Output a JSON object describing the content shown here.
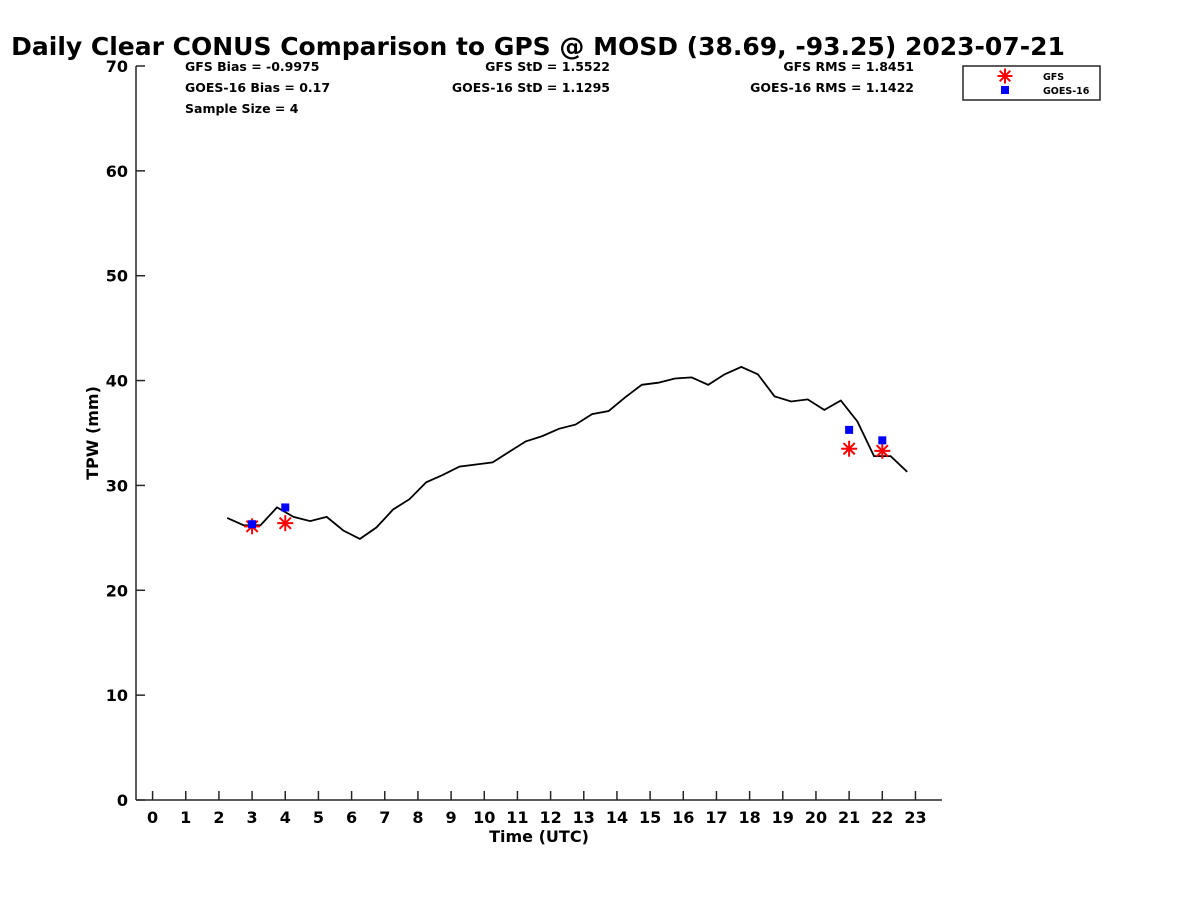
{
  "chart_data": {
    "type": "line",
    "title": "Daily Clear CONUS Comparison to GPS @ MOSD (38.69, -93.25) 2023-07-21",
    "xlabel": "Time (UTC)",
    "ylabel": "TPW (mm)",
    "xlim": [
      -0.5,
      23.8
    ],
    "ylim": [
      0,
      70
    ],
    "x_ticks": [
      "0",
      "1",
      "2",
      "3",
      "4",
      "5",
      "6",
      "7",
      "8",
      "9",
      "10",
      "11",
      "12",
      "13",
      "14",
      "15",
      "16",
      "17",
      "18",
      "19",
      "20",
      "21",
      "22",
      "23"
    ],
    "y_ticks": [
      "0",
      "10",
      "20",
      "30",
      "40",
      "50",
      "60",
      "70"
    ],
    "grid": false,
    "legend_position": "top-right",
    "stats": {
      "gfs_bias": "GFS Bias = -0.9975",
      "goes_bias": "GOES-16 Bias = 0.17",
      "sample_size": "Sample Size = 4",
      "gfs_std": "GFS StD = 1.5522",
      "goes_std": "GOES-16 StD = 1.1295",
      "gfs_rms": "GFS RMS = 1.8451",
      "goes_rms": "GOES-16 RMS = 1.1422"
    },
    "series": [
      {
        "color": "#000000",
        "marker": "line",
        "x": [
          2.25,
          2.75,
          3.25,
          3.75,
          4.25,
          4.75,
          5.25,
          5.75,
          6.25,
          6.75,
          7.25,
          7.75,
          8.25,
          8.75,
          9.25,
          9.75,
          10.25,
          10.75,
          11.25,
          11.75,
          12.25,
          12.75,
          13.25,
          13.75,
          14.25,
          14.75,
          15.25,
          15.75,
          16.25,
          16.75,
          17.25,
          17.75,
          18.25,
          18.75,
          19.25,
          19.75,
          20.25,
          20.75,
          21.25,
          21.75,
          22.25,
          22.75
        ],
        "y": [
          26.9,
          26.2,
          26.2,
          27.9,
          27.0,
          26.6,
          27.0,
          25.7,
          24.9,
          26.0,
          27.7,
          28.7,
          30.3,
          31.0,
          31.8,
          32.0,
          32.2,
          33.2,
          34.2,
          34.7,
          35.4,
          35.8,
          36.8,
          37.1,
          38.4,
          39.6,
          39.8,
          40.2,
          40.3,
          39.6,
          40.6,
          41.3,
          40.6,
          38.5,
          38.0,
          38.2,
          37.2,
          38.1,
          36.1,
          32.8,
          32.8,
          31.3
        ]
      },
      {
        "name": "GFS",
        "color": "#ff0000",
        "marker": "asterisk",
        "x": [
          3,
          4,
          21,
          22
        ],
        "y": [
          26.1,
          26.4,
          33.5,
          33.3
        ]
      },
      {
        "name": "GOES-16",
        "color": "#0000ff",
        "marker": "square",
        "x": [
          3,
          4,
          21,
          22
        ],
        "y": [
          26.3,
          27.9,
          35.3,
          34.3
        ]
      }
    ]
  }
}
